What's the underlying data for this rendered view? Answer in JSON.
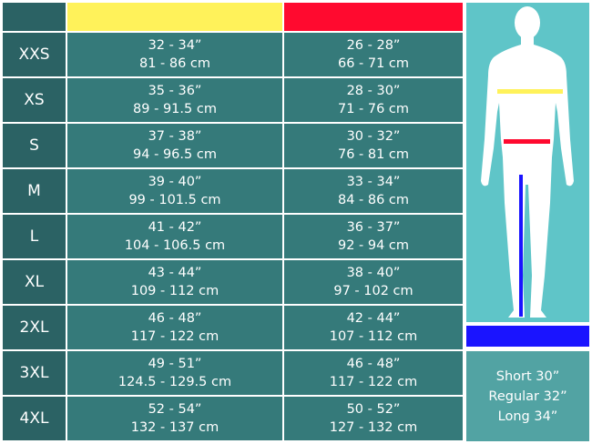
{
  "colors": {
    "chest": "#fff25a",
    "waist": "#ff0a2f",
    "inseam": "#1a14ff"
  },
  "rows": [
    {
      "size": "XXS",
      "chest_in": "32 - 34”",
      "chest_cm": "81 - 86 cm",
      "waist_in": "26 - 28”",
      "waist_cm": "66 - 71 cm"
    },
    {
      "size": "XS",
      "chest_in": "35 - 36”",
      "chest_cm": "89 - 91.5 cm",
      "waist_in": "28 - 30”",
      "waist_cm": "71 - 76 cm"
    },
    {
      "size": "S",
      "chest_in": "37 - 38”",
      "chest_cm": "94 - 96.5 cm",
      "waist_in": "30 - 32”",
      "waist_cm": "76 - 81 cm"
    },
    {
      "size": "M",
      "chest_in": "39 - 40”",
      "chest_cm": "99 - 101.5 cm",
      "waist_in": "33 - 34”",
      "waist_cm": "84 - 86 cm"
    },
    {
      "size": "L",
      "chest_in": "41 - 42”",
      "chest_cm": "104 - 106.5 cm",
      "waist_in": "36 - 37”",
      "waist_cm": "92 - 94 cm"
    },
    {
      "size": "XL",
      "chest_in": "43 - 44”",
      "chest_cm": "109 - 112 cm",
      "waist_in": "38 - 40”",
      "waist_cm": "97 - 102 cm"
    },
    {
      "size": "2XL",
      "chest_in": "46 - 48”",
      "chest_cm": "117 - 122 cm",
      "waist_in": "42 - 44”",
      "waist_cm": "107 - 112 cm"
    },
    {
      "size": "3XL",
      "chest_in": "49 - 51”",
      "chest_cm": "124.5 - 129.5 cm",
      "waist_in": "46 - 48”",
      "waist_cm": "117 - 122 cm"
    },
    {
      "size": "4XL",
      "chest_in": "52 - 54”",
      "chest_cm": "132 - 137 cm",
      "waist_in": "50 - 52”",
      "waist_cm": "127 - 132 cm"
    }
  ],
  "inseam_lengths": [
    "Short 30”",
    "Regular 32”",
    "Long 34”"
  ]
}
